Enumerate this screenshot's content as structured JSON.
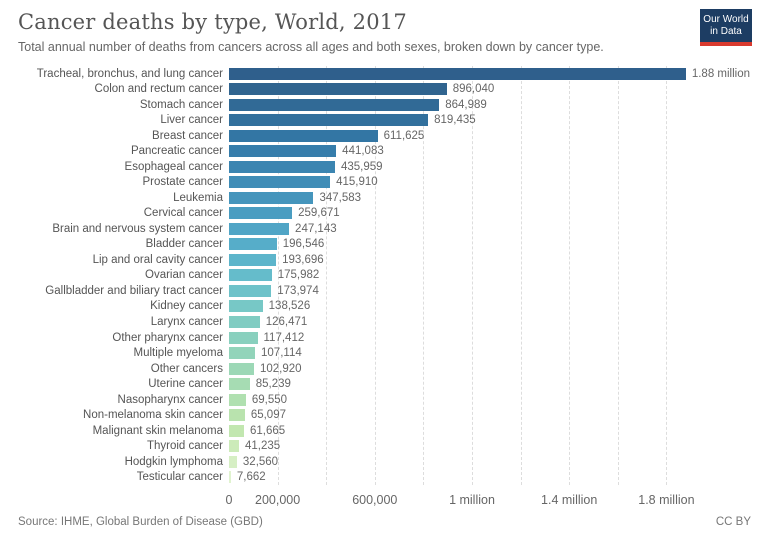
{
  "header": {
    "title": "Cancer deaths by type, World, 2017",
    "subtitle": "Total annual number of deaths from cancers across all ages and both sexes, broken down by cancer type.",
    "logo": {
      "line1": "Our World",
      "line2": "in Data",
      "bg_color": "#1d3d63",
      "accent_color": "#d93a2e"
    }
  },
  "chart_data": {
    "type": "bar",
    "orientation": "horizontal",
    "title": "Cancer deaths by type, World, 2017",
    "xlabel": "",
    "ylabel": "",
    "xlim": [
      0,
      1880000
    ],
    "grid": "dashed-vertical",
    "categories": [
      "Tracheal, bronchus, and lung cancer",
      "Colon and rectum cancer",
      "Stomach cancer",
      "Liver cancer",
      "Breast cancer",
      "Pancreatic cancer",
      "Esophageal cancer",
      "Prostate cancer",
      "Leukemia",
      "Cervical cancer",
      "Brain and nervous system cancer",
      "Bladder cancer",
      "Lip and oral cavity cancer",
      "Ovarian cancer",
      "Gallbladder and biliary tract cancer",
      "Kidney cancer",
      "Larynx cancer",
      "Other pharynx cancer",
      "Multiple myeloma",
      "Other cancers",
      "Uterine cancer",
      "Nasopharynx cancer",
      "Non-melanoma skin cancer",
      "Malignant skin melanoma",
      "Thyroid cancer",
      "Hodgkin lymphoma",
      "Testicular cancer"
    ],
    "values": [
      1880000,
      896040,
      864989,
      819435,
      611625,
      441083,
      435959,
      415910,
      347583,
      259671,
      247143,
      196546,
      193696,
      175982,
      173974,
      138526,
      126471,
      117412,
      107114,
      102920,
      85239,
      69550,
      65097,
      61665,
      41235,
      32560,
      7662
    ],
    "value_labels": [
      "1.88 million",
      "896,040",
      "864,989",
      "819,435",
      "611,625",
      "441,083",
      "435,959",
      "415,910",
      "347,583",
      "259,671",
      "247,143",
      "196,546",
      "193,696",
      "175,982",
      "173,974",
      "138,526",
      "126,471",
      "117,412",
      "107,114",
      "102,920",
      "85,239",
      "69,550",
      "65,097",
      "61,665",
      "41,235",
      "32,560",
      "7,662"
    ],
    "bar_colors": [
      "#2f5f8c",
      "#30648f",
      "#316a96",
      "#32709d",
      "#3376a4",
      "#367dab",
      "#3b85b1",
      "#408db7",
      "#4595bc",
      "#4a9dc1",
      "#50a5c6",
      "#56adc9",
      "#5db5cb",
      "#65bccb",
      "#6ec2c9",
      "#77c8c6",
      "#80ccc2",
      "#89d0be",
      "#92d4ba",
      "#9cd8b6",
      "#a6dcb3",
      "#b0e0b0",
      "#b9e3ae",
      "#c2e7b0",
      "#ccebb9",
      "#d6efc4",
      "#e0f3cf"
    ],
    "x_ticks": [
      {
        "value": 0,
        "label": "0"
      },
      {
        "value": 200000,
        "label": "200,000"
      },
      {
        "value": 600000,
        "label": "600,000"
      },
      {
        "value": 1000000,
        "label": "1 million"
      },
      {
        "value": 1400000,
        "label": "1.4 million"
      },
      {
        "value": 1800000,
        "label": "1.8 million"
      }
    ],
    "gridline_values": [
      200000,
      400000,
      600000,
      800000,
      1000000,
      1200000,
      1400000,
      1600000,
      1800000
    ]
  },
  "footer": {
    "source": "Source: IHME, Global Burden of Disease (GBD)",
    "license": "CC BY"
  }
}
